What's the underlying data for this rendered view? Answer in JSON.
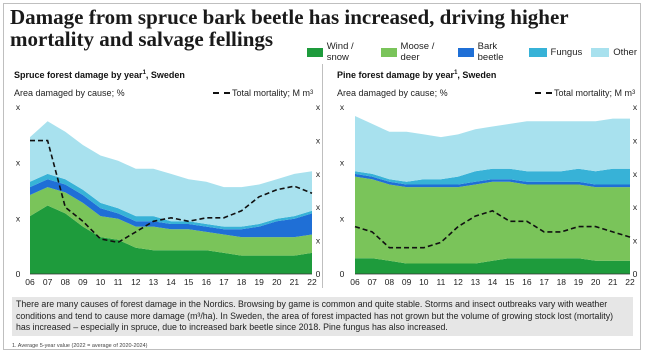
{
  "title": {
    "line1": "Damage from spruce bark beetle has increased, driving higher",
    "line2": "mortality and salvage fellings"
  },
  "legend": [
    {
      "label": "Wind / snow",
      "color": "#1e9b3c"
    },
    {
      "label": "Moose / deer",
      "color": "#7ac45a"
    },
    {
      "label": "Bark beetle",
      "color": "#1f6fd6"
    },
    {
      "label": "Fungus",
      "color": "#37b2d7"
    },
    {
      "label": "Other",
      "color": "#a8e1ee"
    }
  ],
  "panels": {
    "left": {
      "title": "Spruce forest damage by year",
      "title_sup": "1",
      "title_suffix": ", Sweden",
      "subtitle": "Area damaged by cause; %",
      "mortality_label": "Total mortality; M m",
      "mortality_sup": "3"
    },
    "right": {
      "title": "Pine forest damage by year",
      "title_sup": "1",
      "title_suffix": ", Sweden",
      "subtitle": "Area damaged by cause; %",
      "mortality_label": "Total mortality; M m",
      "mortality_sup": "3"
    }
  },
  "note": "There are many causes of forest damage in the Nordics. Browsing by game is common and quite stable. Storms and insect outbreaks vary with weather conditions and tend to cause more damage (m³/ha). In Sweden, the area of forest impacted has not grown but the volume of growing stock lost (mortality) has increased – especially in spruce, due to increased bark beetle since 2018. Pine fungus has also increased.",
  "footnote": "1. Average 5-year value (2022 = average of 2020-2024)",
  "chart_data": [
    {
      "type": "area",
      "title": "Spruce forest damage by year, Sweden",
      "x": [
        "06",
        "07",
        "08",
        "09",
        "10",
        "11",
        "12",
        "13",
        "14",
        "15",
        "16",
        "17",
        "18",
        "19",
        "20",
        "21",
        "22"
      ],
      "y_tick_labels_left": [
        "x",
        "x",
        "x",
        "0"
      ],
      "y_tick_labels_right": [
        "x",
        "x",
        "x",
        "x",
        "x",
        "0"
      ],
      "series": [
        {
          "name": "Wind / snow",
          "color": "#1e9b3c",
          "values": [
            22,
            26,
            23,
            18,
            14,
            13,
            10,
            9,
            9,
            9,
            9,
            8,
            7,
            7,
            7,
            7,
            8
          ]
        },
        {
          "name": "Moose / deer",
          "color": "#7ac45a",
          "values": [
            8,
            7,
            8,
            9,
            8,
            8,
            8,
            9,
            8,
            8,
            7,
            7,
            7,
            7,
            7,
            7,
            7
          ]
        },
        {
          "name": "Bark beetle",
          "color": "#1f6fd6",
          "values": [
            3,
            3,
            3,
            3,
            3,
            2,
            2,
            2,
            2,
            2,
            2,
            2,
            3,
            4,
            6,
            7,
            8
          ]
        },
        {
          "name": "Fungus",
          "color": "#37b2d7",
          "values": [
            2,
            2,
            2,
            2,
            2,
            2,
            2,
            2,
            1,
            1,
            1,
            1,
            1,
            1,
            1,
            1,
            1
          ]
        },
        {
          "name": "Other",
          "color": "#a8e1ee",
          "values": [
            17,
            20,
            18,
            17,
            18,
            18,
            18,
            18,
            18,
            16,
            16,
            15,
            15,
            15,
            15,
            16,
            15
          ]
        }
      ],
      "mortality": {
        "name": "Total mortality; M m³",
        "values": [
          38,
          38,
          19,
          15,
          10,
          9,
          12,
          15,
          16,
          15,
          16,
          16,
          18,
          22,
          24,
          25,
          23
        ]
      },
      "ylim": [
        0,
        60
      ],
      "mortality_ylim": [
        0,
        45
      ]
    },
    {
      "type": "area",
      "title": "Pine forest damage by year, Sweden",
      "x": [
        "06",
        "07",
        "08",
        "09",
        "10",
        "11",
        "12",
        "13",
        "14",
        "15",
        "16",
        "17",
        "18",
        "19",
        "20",
        "21",
        "22"
      ],
      "y_tick_labels_left": [
        "x",
        "x",
        "x",
        "0"
      ],
      "y_tick_labels_right": [
        "x",
        "x",
        "x",
        "x",
        "x",
        "0"
      ],
      "series": [
        {
          "name": "Wind / snow",
          "color": "#1e9b3c",
          "values": [
            6,
            6,
            5,
            4,
            4,
            4,
            4,
            4,
            5,
            6,
            6,
            6,
            6,
            6,
            5,
            5,
            5
          ]
        },
        {
          "name": "Moose / deer",
          "color": "#7ac45a",
          "values": [
            31,
            30,
            29,
            29,
            29,
            29,
            29,
            30,
            30,
            29,
            28,
            28,
            28,
            28,
            28,
            28,
            28
          ]
        },
        {
          "name": "Bark beetle",
          "color": "#1f6fd6",
          "values": [
            1,
            1,
            1,
            1,
            1,
            1,
            1,
            1,
            1,
            1,
            1,
            1,
            1,
            1,
            1,
            1,
            1
          ]
        },
        {
          "name": "Fungus",
          "color": "#37b2d7",
          "values": [
            1,
            1,
            1,
            1,
            2,
            2,
            3,
            4,
            4,
            4,
            4,
            4,
            4,
            5,
            5,
            6,
            6
          ]
        },
        {
          "name": "Other",
          "color": "#a8e1ee",
          "values": [
            21,
            19,
            18,
            19,
            17,
            16,
            16,
            16,
            16,
            17,
            19,
            19,
            19,
            18,
            19,
            19,
            19
          ]
        }
      ],
      "mortality": {
        "name": "Total mortality; M m³",
        "values": [
          9,
          8,
          5,
          5,
          5,
          6,
          9,
          11,
          12,
          10,
          10,
          8,
          8,
          9,
          9,
          8,
          7
        ]
      },
      "ylim": [
        0,
        60
      ],
      "mortality_ylim": [
        0,
        30
      ]
    }
  ]
}
